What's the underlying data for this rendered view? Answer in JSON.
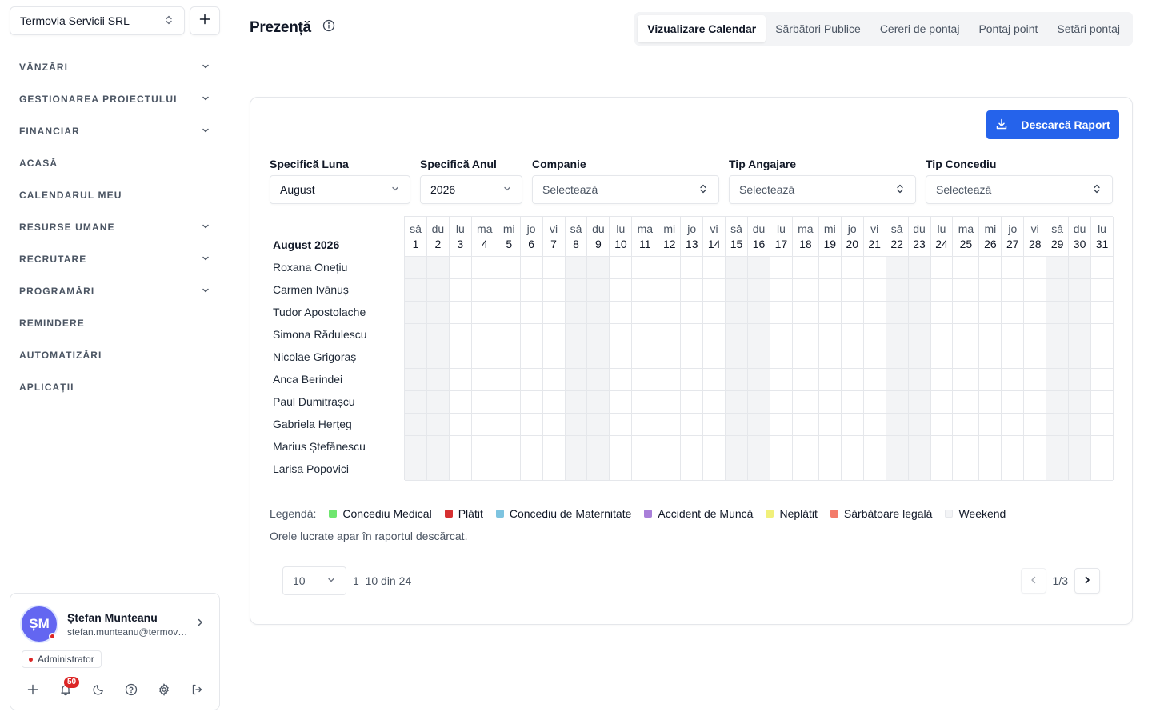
{
  "sidebar": {
    "company": "Termovia Servicii SRL",
    "items": [
      {
        "label": "VÂNZĂRI",
        "has_children": true
      },
      {
        "label": "GESTIONAREA PROIECTULUI",
        "has_children": true
      },
      {
        "label": "FINANCIAR",
        "has_children": true
      },
      {
        "label": "ACASĂ",
        "has_children": false
      },
      {
        "label": "CALENDARUL MEU",
        "has_children": false
      },
      {
        "label": "RESURSE UMANE",
        "has_children": true
      },
      {
        "label": "RECRUTARE",
        "has_children": true
      },
      {
        "label": "PROGRAMĂRI",
        "has_children": true
      },
      {
        "label": "REMINDERE",
        "has_children": false
      },
      {
        "label": "AUTOMATIZĂRI",
        "has_children": false
      },
      {
        "label": "APLICAȚII",
        "has_children": false
      }
    ],
    "user": {
      "initials": "ȘM",
      "name": "Ștefan Munteanu",
      "email": "stefan.munteanu@termovia.ro",
      "role": "Administrator",
      "notifications": "50"
    }
  },
  "header": {
    "title": "Prezență",
    "tabs": [
      "Vizualizare Calendar",
      "Sărbători Publice",
      "Cereri de pontaj",
      "Pontaj point",
      "Setări pontaj"
    ],
    "active_tab": 0
  },
  "toolbar": {
    "download_label": "Descarcă Raport"
  },
  "filters": {
    "month": {
      "label": "Specifică Luna",
      "value": "August"
    },
    "year": {
      "label": "Specifică Anul",
      "value": "2026"
    },
    "company": {
      "label": "Companie",
      "placeholder": "Selectează"
    },
    "employment": {
      "label": "Tip Angajare",
      "placeholder": "Selectează"
    },
    "leave": {
      "label": "Tip Concediu",
      "placeholder": "Selectează"
    }
  },
  "calendar": {
    "month_label": "August 2026",
    "days": [
      {
        "dow": "sâ",
        "day": "1",
        "weekend": true
      },
      {
        "dow": "du",
        "day": "2",
        "weekend": true
      },
      {
        "dow": "lu",
        "day": "3",
        "weekend": false
      },
      {
        "dow": "ma",
        "day": "4",
        "weekend": false
      },
      {
        "dow": "mi",
        "day": "5",
        "weekend": false
      },
      {
        "dow": "jo",
        "day": "6",
        "weekend": false
      },
      {
        "dow": "vi",
        "day": "7",
        "weekend": false
      },
      {
        "dow": "sâ",
        "day": "8",
        "weekend": true
      },
      {
        "dow": "du",
        "day": "9",
        "weekend": true
      },
      {
        "dow": "lu",
        "day": "10",
        "weekend": false
      },
      {
        "dow": "ma",
        "day": "11",
        "weekend": false
      },
      {
        "dow": "mi",
        "day": "12",
        "weekend": false
      },
      {
        "dow": "jo",
        "day": "13",
        "weekend": false
      },
      {
        "dow": "vi",
        "day": "14",
        "weekend": false
      },
      {
        "dow": "sâ",
        "day": "15",
        "weekend": true
      },
      {
        "dow": "du",
        "day": "16",
        "weekend": true
      },
      {
        "dow": "lu",
        "day": "17",
        "weekend": false
      },
      {
        "dow": "ma",
        "day": "18",
        "weekend": false
      },
      {
        "dow": "mi",
        "day": "19",
        "weekend": false
      },
      {
        "dow": "jo",
        "day": "20",
        "weekend": false
      },
      {
        "dow": "vi",
        "day": "21",
        "weekend": false
      },
      {
        "dow": "sâ",
        "day": "22",
        "weekend": true
      },
      {
        "dow": "du",
        "day": "23",
        "weekend": true
      },
      {
        "dow": "lu",
        "day": "24",
        "weekend": false
      },
      {
        "dow": "ma",
        "day": "25",
        "weekend": false
      },
      {
        "dow": "mi",
        "day": "26",
        "weekend": false
      },
      {
        "dow": "jo",
        "day": "27",
        "weekend": false
      },
      {
        "dow": "vi",
        "day": "28",
        "weekend": false
      },
      {
        "dow": "sâ",
        "day": "29",
        "weekend": true
      },
      {
        "dow": "du",
        "day": "30",
        "weekend": true
      },
      {
        "dow": "lu",
        "day": "31",
        "weekend": false
      }
    ],
    "employees": [
      "Roxana Onețiu",
      "Carmen Ivănuș",
      "Tudor Apostolache",
      "Simona Rădulescu",
      "Nicolae Grigoraș",
      "Anca Berindei",
      "Paul Dumitrașcu",
      "Gabriela Herțeg",
      "Marius Ștefănescu",
      "Larisa Popovici"
    ]
  },
  "legend": {
    "label": "Legendă:",
    "items": [
      {
        "label": "Concediu Medical",
        "color": "#6ee66e"
      },
      {
        "label": "Plătit",
        "color": "#d63031"
      },
      {
        "label": "Concediu de Maternitate",
        "color": "#7ec4e0"
      },
      {
        "label": "Accident de Muncă",
        "color": "#a97fd9"
      },
      {
        "label": "Neplătit",
        "color": "#f1f07a"
      },
      {
        "label": "Sărbătoare legală",
        "color": "#f37b6a"
      },
      {
        "label": "Weekend",
        "color": "#f3f4f6"
      }
    ],
    "note": "Orele lucrate apar în raportul descărcat."
  },
  "pagination": {
    "page_size": "10",
    "range": "1–10 din 24",
    "page": "1/3"
  }
}
